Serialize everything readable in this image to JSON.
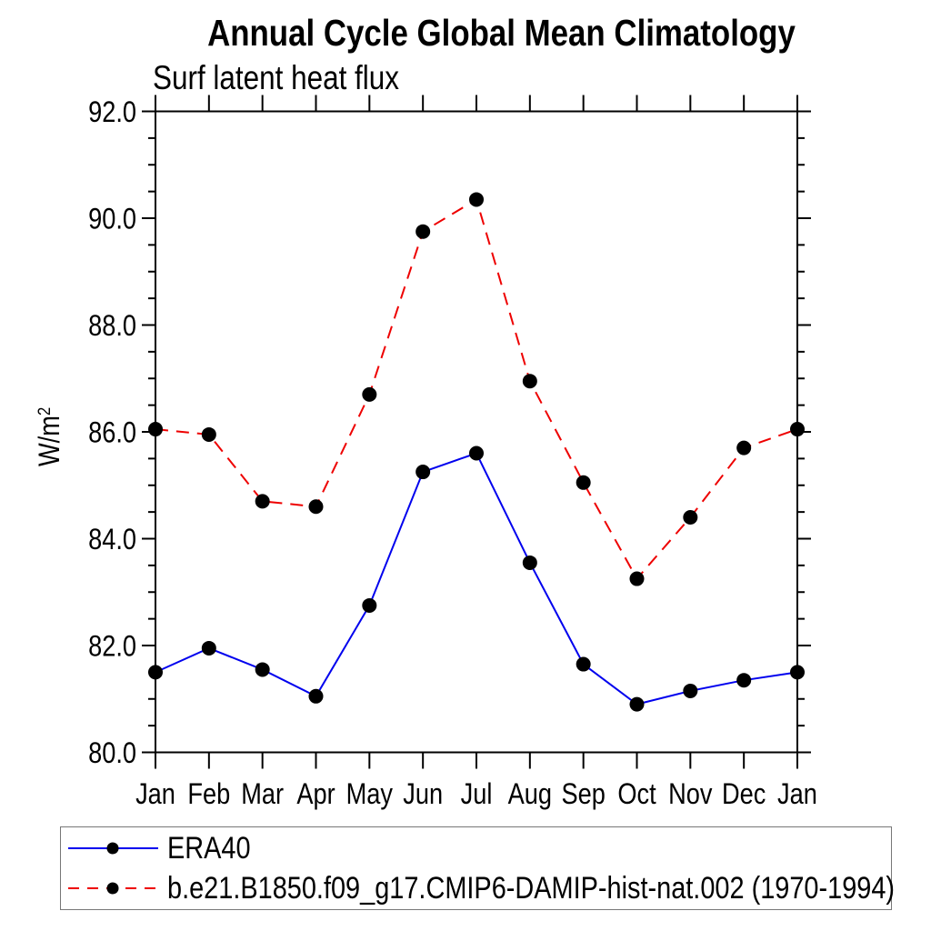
{
  "title": "Annual Cycle Global Mean Climatology",
  "subtitle": "Surf latent heat flux",
  "y_axis": {
    "label_base": "W/m",
    "label_sup": "2"
  },
  "chart_data": {
    "type": "line",
    "categories": [
      "Jan",
      "Feb",
      "Mar",
      "Apr",
      "May",
      "Jun",
      "Jul",
      "Aug",
      "Sep",
      "Oct",
      "Nov",
      "Dec",
      "Jan"
    ],
    "series": [
      {
        "name": "ERA40",
        "line_color": "#0000ee",
        "line_style": "solid",
        "marker": "filled-circle",
        "marker_color": "#000000",
        "values": [
          81.5,
          81.95,
          81.55,
          81.05,
          82.75,
          85.25,
          85.6,
          83.55,
          81.65,
          80.9,
          81.15,
          81.35,
          81.5
        ]
      },
      {
        "name": "b.e21.B1850.f09_g17.CMIP6-DAMIP-hist-nat.002 (1970-1994)",
        "line_color": "#ee0000",
        "line_style": "dashed",
        "marker": "filled-circle",
        "marker_color": "#000000",
        "values": [
          86.05,
          85.95,
          84.7,
          84.6,
          86.7,
          89.75,
          90.35,
          86.95,
          85.05,
          83.25,
          84.4,
          85.7,
          86.05
        ]
      }
    ],
    "ylabel_base": "W/m",
    "ylabel_sup": "2",
    "ylim": [
      80.0,
      92.0
    ],
    "ytick_step": 2.0,
    "yminor_step": 0.5,
    "ytick_format": "one-decimal",
    "xlabel": "",
    "grid": false,
    "legend_position": "bottom-left-box",
    "axis_color": "#000000",
    "background_color": "#ffffff"
  }
}
